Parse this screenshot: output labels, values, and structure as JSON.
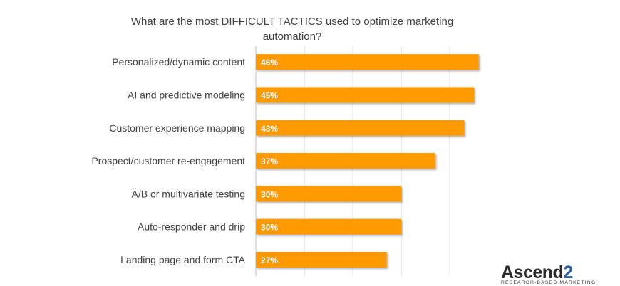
{
  "chart_data": {
    "type": "bar",
    "orientation": "horizontal",
    "title": "What are the most DIFFICULT TACTICS used to optimize marketing automation?",
    "categories": [
      "Personalized/dynamic content",
      "AI and predictive modeling",
      "Customer experience mapping",
      "Prospect/customer re-engagement",
      "A/B or multivariate testing",
      "Auto-responder and drip",
      "Landing page and form CTA"
    ],
    "values": [
      46,
      45,
      43,
      37,
      30,
      30,
      27
    ],
    "data_labels": [
      "46%",
      "45%",
      "43%",
      "37%",
      "30%",
      "30%",
      "27%"
    ],
    "xlim": [
      0,
      50
    ],
    "x_gridlines": [
      10,
      20,
      30,
      40
    ],
    "grid": true,
    "bar_color": "#FF9900",
    "xlabel": "",
    "ylabel": ""
  },
  "logo": {
    "name": "Ascend",
    "name_suffix": "2",
    "tagline": "RESEARCH-BASED MARKETING"
  }
}
